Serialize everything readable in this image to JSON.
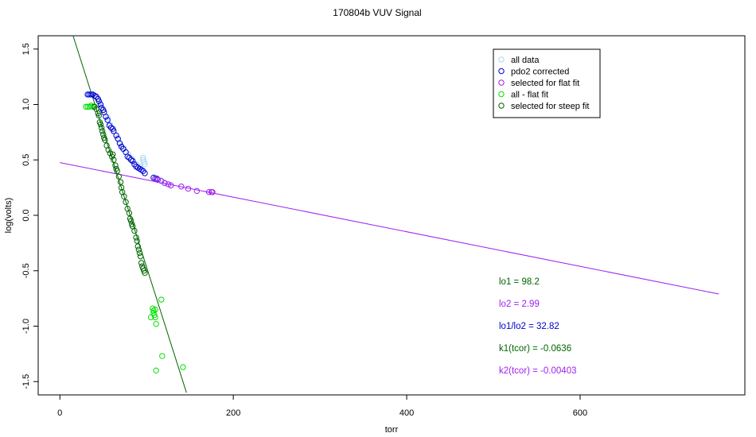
{
  "chart_data": {
    "type": "scatter",
    "title": "170804b   VUV Signal",
    "xlabel": "torr",
    "ylabel": "log(volts)",
    "xlim": [
      -25,
      790
    ],
    "ylim": [
      -1.62,
      1.62
    ],
    "x_ticks": [
      0,
      200,
      400,
      600
    ],
    "y_ticks": [
      -1.5,
      -1.0,
      -0.5,
      0.0,
      0.5,
      1.0,
      1.5
    ],
    "x_tick_labels": [
      "0",
      "200",
      "400",
      "600"
    ],
    "y_tick_labels": [
      "-1.5",
      "-1.0",
      "-0.5",
      "0.0",
      "0.5",
      "1.0",
      "1.5"
    ],
    "legend_position": "top-right",
    "legend": [
      {
        "label": "all data",
        "color": "#a6d8f0"
      },
      {
        "label": "pdo2 corrected",
        "color": "#0000cc"
      },
      {
        "label": "selected for flat fit",
        "color": "#a020f0"
      },
      {
        "label": "all - flat fit",
        "color": "#00e000"
      },
      {
        "label": "selected for steep fit",
        "color": "#006400"
      }
    ],
    "annotations": [
      {
        "text": "lo1 = 98.2",
        "color": "#006400"
      },
      {
        "text": "lo2 = 2.99",
        "color": "#a020f0"
      },
      {
        "text": "lo1/lo2 = 32.82",
        "color": "#0000cc"
      },
      {
        "text": "k1(tcor) = -0.0636",
        "color": "#006400"
      },
      {
        "text": "k2(tcor) = -0.00403",
        "color": "#a020f0"
      }
    ],
    "fit_lines": [
      {
        "color": "#006400",
        "x": [
          14,
          146
        ],
        "y": [
          1.65,
          -1.6
        ]
      },
      {
        "color": "#a020f0",
        "x": [
          0,
          760
        ],
        "y": [
          0.476,
          -0.71
        ]
      }
    ],
    "series": [
      {
        "color": "#a6d8f0",
        "x": [
          33,
          37,
          42,
          46,
          50,
          55,
          58,
          62,
          66,
          70,
          74,
          79,
          83,
          88,
          92,
          96,
          96,
          97,
          98,
          110,
          115,
          120,
          125
        ],
        "y": [
          1.09,
          1.09,
          1.07,
          1.02,
          0.96,
          0.88,
          0.82,
          0.76,
          0.7,
          0.64,
          0.6,
          0.55,
          0.51,
          0.46,
          0.44,
          0.52,
          0.5,
          0.48,
          0.46,
          0.34,
          0.32,
          0.3,
          0.28
        ]
      },
      {
        "color": "#0000cc",
        "x": [
          32,
          34,
          36,
          38,
          40,
          42,
          44,
          45,
          47,
          48,
          50,
          51,
          53,
          55,
          57,
          59,
          61,
          62,
          65,
          67,
          69,
          71,
          73,
          76,
          78,
          80,
          82,
          84,
          86,
          88,
          90,
          92,
          94,
          96,
          98,
          108,
          110,
          112
        ],
        "y": [
          1.09,
          1.09,
          1.09,
          1.09,
          1.08,
          1.07,
          1.05,
          1.03,
          1.0,
          0.97,
          0.95,
          0.93,
          0.89,
          0.86,
          0.81,
          0.79,
          0.78,
          0.76,
          0.72,
          0.69,
          0.65,
          0.62,
          0.6,
          0.57,
          0.53,
          0.52,
          0.5,
          0.49,
          0.46,
          0.44,
          0.43,
          0.42,
          0.41,
          0.4,
          0.38,
          0.34,
          0.33,
          0.33
        ]
      },
      {
        "color": "#a020f0",
        "x": [
          110,
          113,
          117,
          121,
          125,
          128,
          140,
          148,
          158,
          172,
          175,
          176
        ],
        "y": [
          0.33,
          0.32,
          0.31,
          0.29,
          0.28,
          0.27,
          0.26,
          0.24,
          0.22,
          0.21,
          0.21,
          0.21
        ]
      },
      {
        "color": "#00e000",
        "x": [
          30,
          32,
          34,
          36,
          38,
          40,
          105,
          107,
          108,
          108,
          109,
          110,
          110,
          111,
          117,
          118,
          111,
          142
        ],
        "y": [
          0.98,
          0.98,
          0.98,
          0.99,
          0.98,
          0.98,
          -0.92,
          -0.84,
          -0.86,
          -0.88,
          -0.9,
          -0.92,
          -0.85,
          -0.98,
          -0.76,
          -1.27,
          -1.4,
          -1.37
        ]
      },
      {
        "color": "#006400",
        "x": [
          40,
          42,
          44,
          45,
          46,
          47,
          48,
          49,
          50,
          51,
          52,
          54,
          56,
          58,
          60,
          61,
          62,
          64,
          65,
          66,
          68,
          70,
          71,
          72,
          74,
          76,
          78,
          80,
          81,
          82,
          83,
          84,
          86,
          88,
          89,
          90,
          91,
          92,
          93,
          94,
          95,
          96,
          97,
          98
        ],
        "y": [
          0.98,
          0.96,
          0.92,
          0.9,
          0.84,
          0.82,
          0.79,
          0.76,
          0.73,
          0.7,
          0.68,
          0.63,
          0.59,
          0.56,
          0.53,
          0.55,
          0.5,
          0.45,
          0.42,
          0.4,
          0.35,
          0.3,
          0.25,
          0.21,
          0.17,
          0.12,
          0.06,
          0.02,
          -0.03,
          -0.05,
          -0.08,
          -0.1,
          -0.14,
          -0.2,
          -0.23,
          -0.28,
          -0.31,
          -0.34,
          -0.37,
          -0.43,
          -0.46,
          -0.48,
          -0.5,
          -0.52
        ]
      }
    ]
  }
}
